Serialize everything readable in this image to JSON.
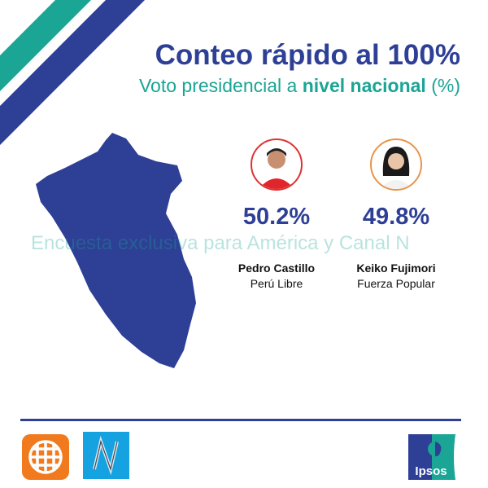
{
  "header": {
    "title": "Conteo rápido al 100%",
    "subtitle_pre": "Voto presidencial a ",
    "subtitle_bold": "nivel nacional",
    "subtitle_post": " (%)"
  },
  "watermark": "Encuesta exclusiva para América y Canal N",
  "candidates": [
    {
      "name": "Pedro Castillo",
      "party": "Perú Libre",
      "percent": "50.2%",
      "ring_color": "#d9363e"
    },
    {
      "name": "Keiko Fujimori",
      "party": "Fuerza Popular",
      "percent": "49.8%",
      "ring_color": "#e8954a"
    }
  ],
  "logos": {
    "left": [
      "america-tv-logo",
      "canal-n-logo"
    ],
    "right": "Ipsos"
  },
  "colors": {
    "navy": "#2e3f96",
    "teal": "#1aa595",
    "orange": "#f07a1d",
    "cyan": "#14a3e0"
  }
}
